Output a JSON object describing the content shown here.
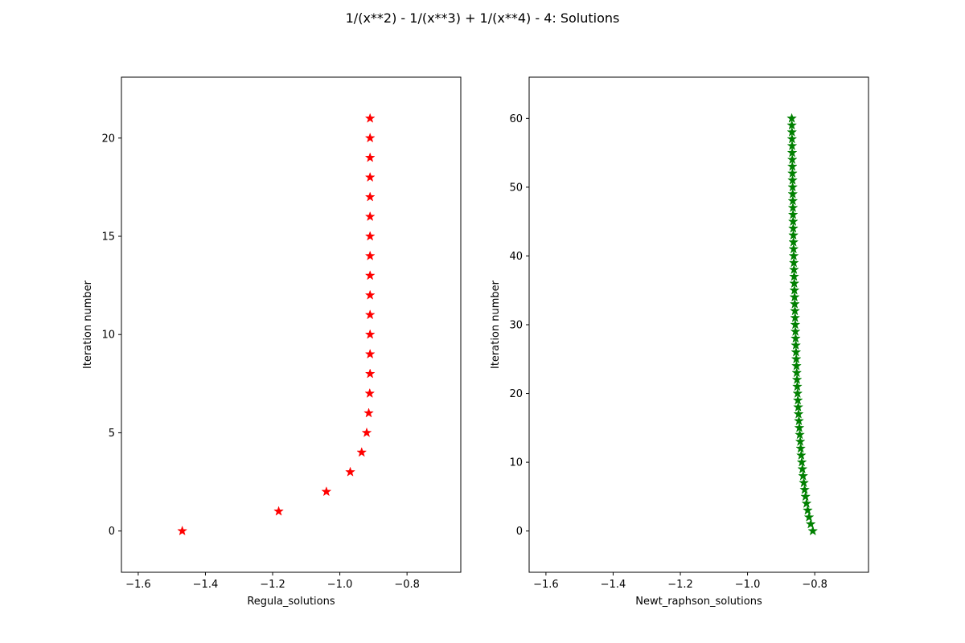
{
  "figure": {
    "title": "1/(x**2) - 1/(x**3) + 1/(x**4) - 4: Solutions"
  },
  "chart_data": [
    {
      "type": "scatter",
      "marker": "star",
      "color": "#ff0000",
      "xlabel": "Regula_solutions",
      "ylabel": "Iteration number",
      "xlim": [
        -1.65,
        -0.64
      ],
      "ylim": [
        -2.1,
        23.1
      ],
      "xticks": [
        -1.6,
        -1.4,
        -1.2,
        -1.0,
        -0.8
      ],
      "xtick_labels": [
        "−1.6",
        "−1.4",
        "−1.2",
        "−1.0",
        "−0.8"
      ],
      "yticks": [
        0,
        5,
        10,
        15,
        20
      ],
      "ytick_labels": [
        "0",
        "5",
        "10",
        "15",
        "20"
      ],
      "x": [
        -1.469,
        -1.182,
        -1.04,
        -0.969,
        -0.935,
        -0.92,
        -0.914,
        -0.911,
        -0.91,
        -0.91,
        -0.91,
        -0.91,
        -0.91,
        -0.91,
        -0.91,
        -0.91,
        -0.91,
        -0.91,
        -0.91,
        -0.91,
        -0.91,
        -0.91
      ],
      "y": [
        0,
        1,
        2,
        3,
        4,
        5,
        6,
        7,
        8,
        9,
        10,
        11,
        12,
        13,
        14,
        15,
        16,
        17,
        18,
        19,
        20,
        21
      ]
    },
    {
      "type": "scatter",
      "marker": "star",
      "color": "#008000",
      "xlabel": "Newt_raphson_solutions",
      "ylabel": "Iteration number",
      "xlim": [
        -1.65,
        -0.64
      ],
      "ylim": [
        -6,
        66
      ],
      "xticks": [
        -1.6,
        -1.4,
        -1.2,
        -1.0,
        -0.8
      ],
      "xtick_labels": [
        "−1.6",
        "−1.4",
        "−1.2",
        "−1.0",
        "−0.8"
      ],
      "yticks": [
        0,
        10,
        20,
        30,
        40,
        50,
        60
      ],
      "ytick_labels": [
        "0",
        "10",
        "20",
        "30",
        "40",
        "50",
        "60"
      ],
      "x": [
        -0.8057,
        -0.812,
        -0.817,
        -0.821,
        -0.8245,
        -0.8275,
        -0.8301,
        -0.8325,
        -0.8347,
        -0.8367,
        -0.8385,
        -0.8402,
        -0.8418,
        -0.8432,
        -0.8446,
        -0.8459,
        -0.8471,
        -0.8482,
        -0.8492,
        -0.8502,
        -0.8511,
        -0.852,
        -0.8528,
        -0.8536,
        -0.8543,
        -0.855,
        -0.8557,
        -0.8563,
        -0.8569,
        -0.8575,
        -0.858,
        -0.8585,
        -0.859,
        -0.8595,
        -0.86,
        -0.8605,
        -0.8609,
        -0.8613,
        -0.8617,
        -0.8621,
        -0.8625,
        -0.8629,
        -0.8633,
        -0.8636,
        -0.864,
        -0.8643,
        -0.8646,
        -0.8649,
        -0.8652,
        -0.8655,
        -0.8658,
        -0.8661,
        -0.8664,
        -0.8667,
        -0.8669,
        -0.8672,
        -0.8674,
        -0.8677,
        -0.8679,
        -0.8682,
        -0.8684
      ],
      "y": [
        0,
        1,
        2,
        3,
        4,
        5,
        6,
        7,
        8,
        9,
        10,
        11,
        12,
        13,
        14,
        15,
        16,
        17,
        18,
        19,
        20,
        21,
        22,
        23,
        24,
        25,
        26,
        27,
        28,
        29,
        30,
        31,
        32,
        33,
        34,
        35,
        36,
        37,
        38,
        39,
        40,
        41,
        42,
        43,
        44,
        45,
        46,
        47,
        48,
        49,
        50,
        51,
        52,
        53,
        54,
        55,
        56,
        57,
        58,
        59,
        60
      ]
    }
  ]
}
